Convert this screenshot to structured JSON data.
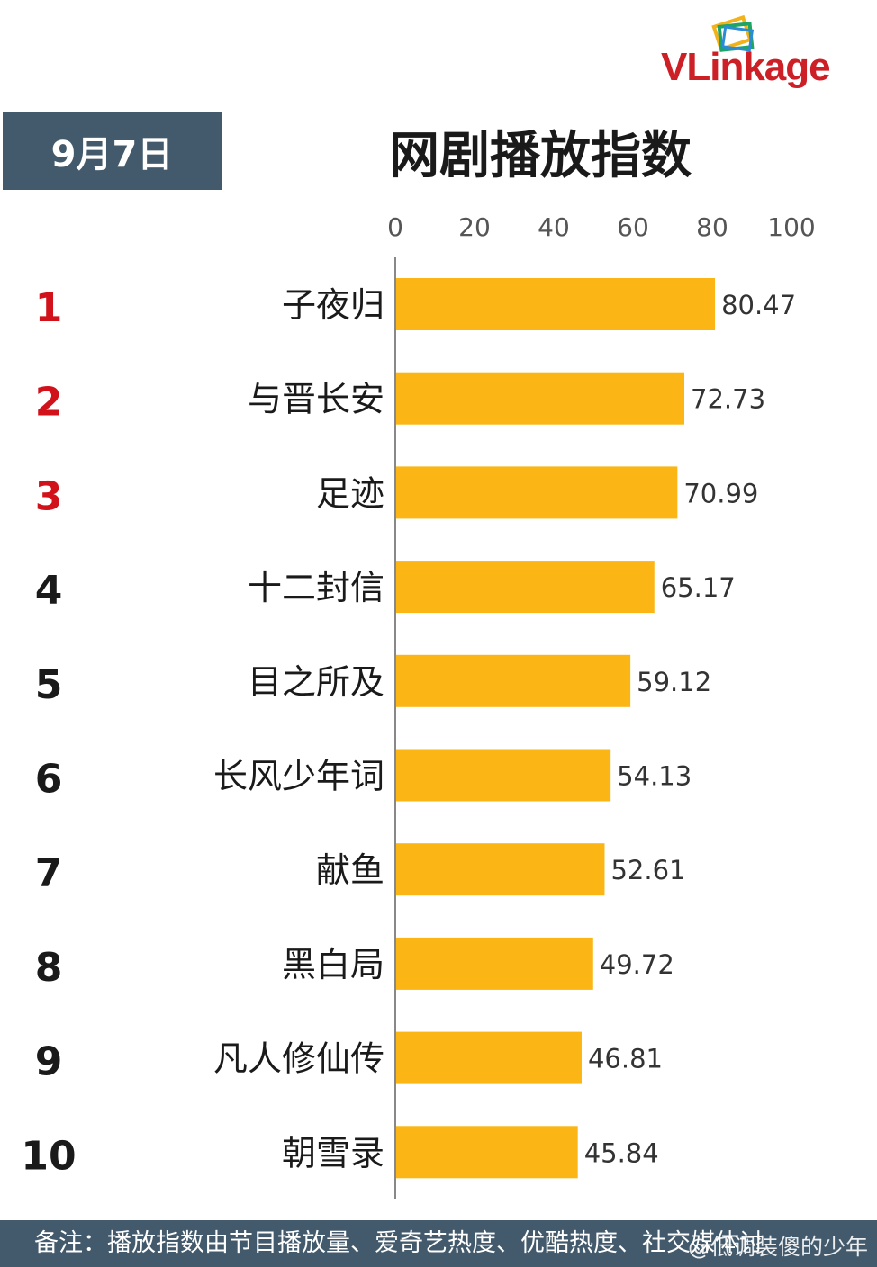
{
  "brand": {
    "logo_text": "VLinkage"
  },
  "date_label": "9月7日",
  "footer_note": "备注：播放指数由节目播放量、爱奇艺热度、优酷热度、社交媒体讨",
  "watermark": "@低调装傻的少年",
  "colors": {
    "bar": "#fbb615",
    "header_band": "#435a6c",
    "rank_top": "#d1121b",
    "rank_default": "#1a1a1a",
    "axis": "#888888"
  },
  "chart_data": {
    "type": "bar",
    "orientation": "horizontal",
    "title": "网剧播放指数",
    "xlabel": "",
    "ylabel": "",
    "xlim": [
      0,
      100
    ],
    "ticks": [
      0,
      20,
      40,
      60,
      80,
      100
    ],
    "grid": false,
    "legend": "none",
    "ranks": [
      "1",
      "2",
      "3",
      "4",
      "5",
      "6",
      "7",
      "8",
      "9",
      "10"
    ],
    "categories": [
      "子夜归",
      "与晋长安",
      "足迹",
      "十二封信",
      "目之所及",
      "长风少年词",
      "献鱼",
      "黑白局",
      "凡人修仙传",
      "朝雪录"
    ],
    "values": [
      80.47,
      72.73,
      70.99,
      65.17,
      59.12,
      54.13,
      52.61,
      49.72,
      46.81,
      45.84
    ],
    "value_labels": [
      "80.47",
      "72.73",
      "70.99",
      "65.17",
      "59.12",
      "54.13",
      "52.61",
      "49.72",
      "46.81",
      "45.84"
    ]
  }
}
